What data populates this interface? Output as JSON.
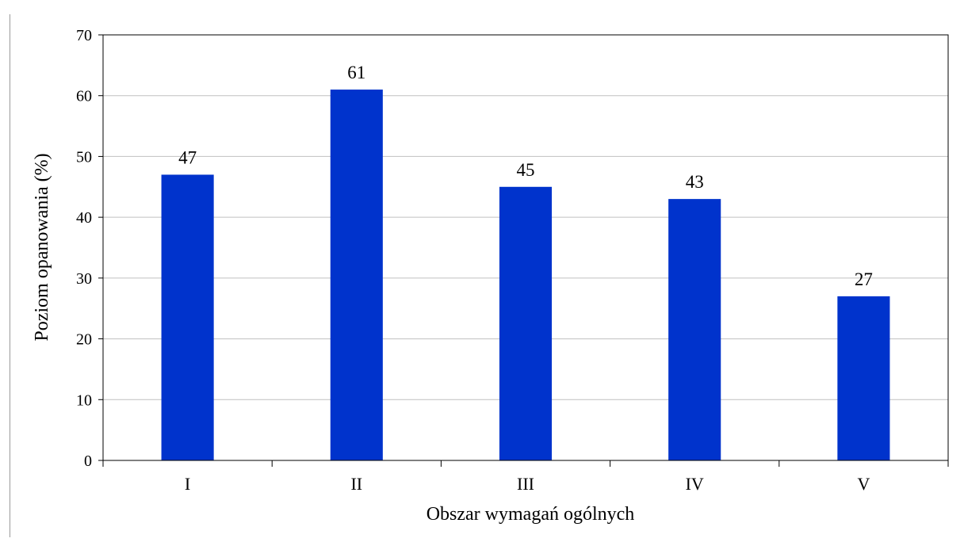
{
  "chart_data": {
    "type": "bar",
    "categories": [
      "I",
      "II",
      "III",
      "IV",
      "V"
    ],
    "values": [
      47,
      61,
      45,
      43,
      27
    ],
    "data_labels": [
      "47",
      "61",
      "45",
      "43",
      "27"
    ],
    "title": "",
    "xlabel": "Obszar wymagań ogólnych",
    "ylabel": "Poziom opanowania (%)",
    "ylim": [
      0,
      70
    ],
    "yticks": [
      0,
      10,
      20,
      30,
      40,
      50,
      60,
      70
    ],
    "ytick_labels": [
      "0",
      "10",
      "20",
      "30",
      "40",
      "50",
      "60",
      "70"
    ],
    "grid": true,
    "legend": "none",
    "bar_color": "#0033cc",
    "grid_color": "#c0c0c0",
    "axis_color": "#000000"
  }
}
